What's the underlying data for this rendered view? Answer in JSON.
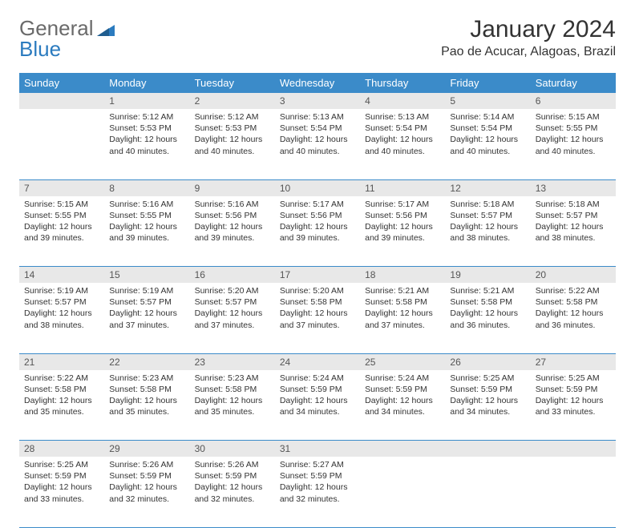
{
  "branding": {
    "logo_text_1": "General",
    "logo_text_2": "Blue",
    "logo_text_color": "#6a6a6a",
    "logo_accent_color": "#2b7bbf"
  },
  "header": {
    "month_title": "January 2024",
    "location": "Pao de Acucar, Alagoas, Brazil"
  },
  "colors": {
    "header_bg": "#3b8bc9",
    "header_fg": "#ffffff",
    "daynum_bg": "#e8e8e8",
    "daynum_fg": "#555555",
    "border": "#3b8bc9",
    "text": "#333333",
    "page_bg": "#ffffff"
  },
  "day_headers": [
    "Sunday",
    "Monday",
    "Tuesday",
    "Wednesday",
    "Thursday",
    "Friday",
    "Saturday"
  ],
  "weeks": [
    [
      {
        "num": "",
        "lines": []
      },
      {
        "num": "1",
        "lines": [
          "Sunrise: 5:12 AM",
          "Sunset: 5:53 PM",
          "Daylight: 12 hours",
          "and 40 minutes."
        ]
      },
      {
        "num": "2",
        "lines": [
          "Sunrise: 5:12 AM",
          "Sunset: 5:53 PM",
          "Daylight: 12 hours",
          "and 40 minutes."
        ]
      },
      {
        "num": "3",
        "lines": [
          "Sunrise: 5:13 AM",
          "Sunset: 5:54 PM",
          "Daylight: 12 hours",
          "and 40 minutes."
        ]
      },
      {
        "num": "4",
        "lines": [
          "Sunrise: 5:13 AM",
          "Sunset: 5:54 PM",
          "Daylight: 12 hours",
          "and 40 minutes."
        ]
      },
      {
        "num": "5",
        "lines": [
          "Sunrise: 5:14 AM",
          "Sunset: 5:54 PM",
          "Daylight: 12 hours",
          "and 40 minutes."
        ]
      },
      {
        "num": "6",
        "lines": [
          "Sunrise: 5:15 AM",
          "Sunset: 5:55 PM",
          "Daylight: 12 hours",
          "and 40 minutes."
        ]
      }
    ],
    [
      {
        "num": "7",
        "lines": [
          "Sunrise: 5:15 AM",
          "Sunset: 5:55 PM",
          "Daylight: 12 hours",
          "and 39 minutes."
        ]
      },
      {
        "num": "8",
        "lines": [
          "Sunrise: 5:16 AM",
          "Sunset: 5:55 PM",
          "Daylight: 12 hours",
          "and 39 minutes."
        ]
      },
      {
        "num": "9",
        "lines": [
          "Sunrise: 5:16 AM",
          "Sunset: 5:56 PM",
          "Daylight: 12 hours",
          "and 39 minutes."
        ]
      },
      {
        "num": "10",
        "lines": [
          "Sunrise: 5:17 AM",
          "Sunset: 5:56 PM",
          "Daylight: 12 hours",
          "and 39 minutes."
        ]
      },
      {
        "num": "11",
        "lines": [
          "Sunrise: 5:17 AM",
          "Sunset: 5:56 PM",
          "Daylight: 12 hours",
          "and 39 minutes."
        ]
      },
      {
        "num": "12",
        "lines": [
          "Sunrise: 5:18 AM",
          "Sunset: 5:57 PM",
          "Daylight: 12 hours",
          "and 38 minutes."
        ]
      },
      {
        "num": "13",
        "lines": [
          "Sunrise: 5:18 AM",
          "Sunset: 5:57 PM",
          "Daylight: 12 hours",
          "and 38 minutes."
        ]
      }
    ],
    [
      {
        "num": "14",
        "lines": [
          "Sunrise: 5:19 AM",
          "Sunset: 5:57 PM",
          "Daylight: 12 hours",
          "and 38 minutes."
        ]
      },
      {
        "num": "15",
        "lines": [
          "Sunrise: 5:19 AM",
          "Sunset: 5:57 PM",
          "Daylight: 12 hours",
          "and 37 minutes."
        ]
      },
      {
        "num": "16",
        "lines": [
          "Sunrise: 5:20 AM",
          "Sunset: 5:57 PM",
          "Daylight: 12 hours",
          "and 37 minutes."
        ]
      },
      {
        "num": "17",
        "lines": [
          "Sunrise: 5:20 AM",
          "Sunset: 5:58 PM",
          "Daylight: 12 hours",
          "and 37 minutes."
        ]
      },
      {
        "num": "18",
        "lines": [
          "Sunrise: 5:21 AM",
          "Sunset: 5:58 PM",
          "Daylight: 12 hours",
          "and 37 minutes."
        ]
      },
      {
        "num": "19",
        "lines": [
          "Sunrise: 5:21 AM",
          "Sunset: 5:58 PM",
          "Daylight: 12 hours",
          "and 36 minutes."
        ]
      },
      {
        "num": "20",
        "lines": [
          "Sunrise: 5:22 AM",
          "Sunset: 5:58 PM",
          "Daylight: 12 hours",
          "and 36 minutes."
        ]
      }
    ],
    [
      {
        "num": "21",
        "lines": [
          "Sunrise: 5:22 AM",
          "Sunset: 5:58 PM",
          "Daylight: 12 hours",
          "and 35 minutes."
        ]
      },
      {
        "num": "22",
        "lines": [
          "Sunrise: 5:23 AM",
          "Sunset: 5:58 PM",
          "Daylight: 12 hours",
          "and 35 minutes."
        ]
      },
      {
        "num": "23",
        "lines": [
          "Sunrise: 5:23 AM",
          "Sunset: 5:58 PM",
          "Daylight: 12 hours",
          "and 35 minutes."
        ]
      },
      {
        "num": "24",
        "lines": [
          "Sunrise: 5:24 AM",
          "Sunset: 5:59 PM",
          "Daylight: 12 hours",
          "and 34 minutes."
        ]
      },
      {
        "num": "25",
        "lines": [
          "Sunrise: 5:24 AM",
          "Sunset: 5:59 PM",
          "Daylight: 12 hours",
          "and 34 minutes."
        ]
      },
      {
        "num": "26",
        "lines": [
          "Sunrise: 5:25 AM",
          "Sunset: 5:59 PM",
          "Daylight: 12 hours",
          "and 34 minutes."
        ]
      },
      {
        "num": "27",
        "lines": [
          "Sunrise: 5:25 AM",
          "Sunset: 5:59 PM",
          "Daylight: 12 hours",
          "and 33 minutes."
        ]
      }
    ],
    [
      {
        "num": "28",
        "lines": [
          "Sunrise: 5:25 AM",
          "Sunset: 5:59 PM",
          "Daylight: 12 hours",
          "and 33 minutes."
        ]
      },
      {
        "num": "29",
        "lines": [
          "Sunrise: 5:26 AM",
          "Sunset: 5:59 PM",
          "Daylight: 12 hours",
          "and 32 minutes."
        ]
      },
      {
        "num": "30",
        "lines": [
          "Sunrise: 5:26 AM",
          "Sunset: 5:59 PM",
          "Daylight: 12 hours",
          "and 32 minutes."
        ]
      },
      {
        "num": "31",
        "lines": [
          "Sunrise: 5:27 AM",
          "Sunset: 5:59 PM",
          "Daylight: 12 hours",
          "and 32 minutes."
        ]
      },
      {
        "num": "",
        "lines": []
      },
      {
        "num": "",
        "lines": []
      },
      {
        "num": "",
        "lines": []
      }
    ]
  ]
}
